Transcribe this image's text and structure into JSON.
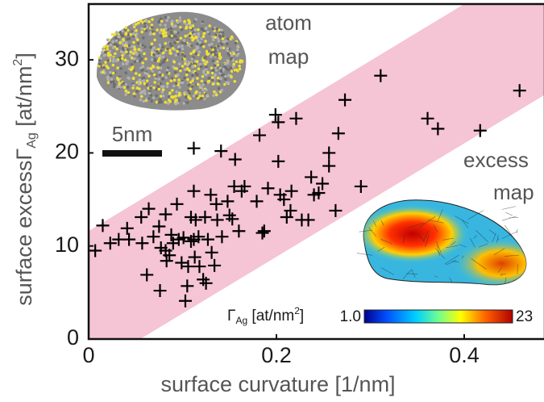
{
  "chart_data": {
    "type": "scatter",
    "xlabel": "surface curvature [1/nm]",
    "ylabel": {
      "main": "surface excess",
      "symbol": "Γ",
      "sub": "Ag",
      "unit": " [at/nm",
      "sup": "2",
      "close": "]"
    },
    "xlim": [
      0,
      0.485
    ],
    "ylim": [
      0,
      36
    ],
    "xticks": [
      0,
      0.2,
      0.4
    ],
    "yticks": [
      0,
      10,
      20,
      30
    ],
    "marker_color": "#000000",
    "band": {
      "color": "#f5c4d5",
      "upper": {
        "x": [
          0,
          0.4
        ],
        "y": [
          11.6,
          36
        ]
      },
      "lower": {
        "x": [
          0.055,
          0.485
        ],
        "y": [
          0,
          26.2
        ]
      }
    },
    "x": [
      0.007,
      0.015,
      0.023,
      0.032,
      0.041,
      0.043,
      0.056,
      0.057,
      0.062,
      0.064,
      0.069,
      0.075,
      0.076,
      0.077,
      0.082,
      0.082,
      0.083,
      0.086,
      0.088,
      0.09,
      0.094,
      0.096,
      0.099,
      0.101,
      0.103,
      0.105,
      0.106,
      0.109,
      0.109,
      0.112,
      0.112,
      0.112,
      0.113,
      0.114,
      0.117,
      0.118,
      0.122,
      0.124,
      0.125,
      0.127,
      0.13,
      0.131,
      0.134,
      0.136,
      0.137,
      0.141,
      0.142,
      0.148,
      0.15,
      0.153,
      0.155,
      0.156,
      0.16,
      0.163,
      0.166,
      0.179,
      0.182,
      0.185,
      0.187,
      0.191,
      0.199,
      0.202,
      0.202,
      0.204,
      0.208,
      0.211,
      0.215,
      0.216,
      0.221,
      0.227,
      0.234,
      0.237,
      0.24,
      0.245,
      0.249,
      0.256,
      0.256,
      0.263,
      0.266,
      0.273,
      0.29,
      0.311,
      0.361,
      0.372,
      0.417,
      0.459
    ],
    "values": [
      9.5,
      12.2,
      10.3,
      10.7,
      11.9,
      10.7,
      13.1,
      10.3,
      6.9,
      14.0,
      11.0,
      12.1,
      5.2,
      9.8,
      13.4,
      9.5,
      8.4,
      9.0,
      11.2,
      10.3,
      14.5,
      10.7,
      8.2,
      10.9,
      4.1,
      5.7,
      7.8,
      13.1,
      10.5,
      20.5,
      15.9,
      10.7,
      8.8,
      12.8,
      11.0,
      7.8,
      6.4,
      13.1,
      6.0,
      10.7,
      15.5,
      9.3,
      7.9,
      14.5,
      12.8,
      20.2,
      11.0,
      14.8,
      13.3,
      12.9,
      16.4,
      19.3,
      11.6,
      15.9,
      16.4,
      14.8,
      21.9,
      11.4,
      11.6,
      16.2,
      24.1,
      23.3,
      19.1,
      15.5,
      15.0,
      13.1,
      13.8,
      15.9,
      23.7,
      12.8,
      12.8,
      17.4,
      15.5,
      15.7,
      16.7,
      18.6,
      20.0,
      13.8,
      22.1,
      25.7,
      16.4,
      28.3,
      23.7,
      22.6,
      22.4,
      26.7
    ],
    "annotations": {
      "atom_map": [
        "atom",
        "map"
      ],
      "scale_bar": "5nm",
      "excess_map": [
        "excess",
        "map"
      ],
      "colorbar": {
        "symbol": "Γ",
        "sub": "Ag",
        "unit": " [at/nm",
        "sup": "2",
        "close": "]",
        "min_label": "1.0",
        "max_label": "23"
      }
    }
  }
}
